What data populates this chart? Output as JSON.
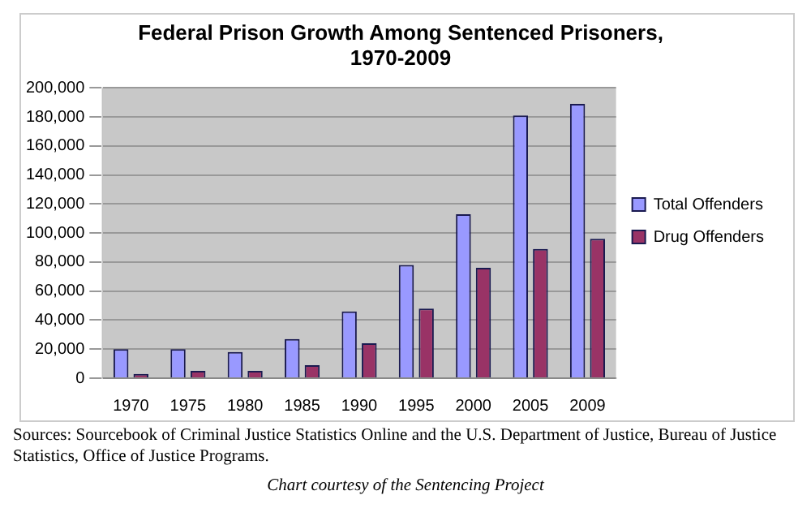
{
  "chart_data": {
    "type": "bar",
    "title": "Federal Prison Growth Among Sentenced Prisoners,\n1970-2009",
    "categories": [
      "1970",
      "1975",
      "1980",
      "1985",
      "1990",
      "1995",
      "2000",
      "2005",
      "2009"
    ],
    "series": [
      {
        "name": "Total Offenders",
        "color": "#9999ff",
        "values": [
          20000,
          20000,
          18000,
          27000,
          46000,
          78000,
          113000,
          181000,
          189000
        ]
      },
      {
        "name": "Drug Offenders",
        "color": "#993366",
        "values": [
          3000,
          5000,
          5000,
          9000,
          24000,
          48000,
          76000,
          89000,
          96000
        ]
      }
    ],
    "ylim": [
      0,
      200000
    ],
    "yticks": [
      0,
      {
        "value": 20000,
        "label": "20,000"
      },
      {
        "value": 40000,
        "label": "40,000"
      },
      {
        "value": 60000,
        "label": "60,000"
      },
      {
        "value": 80000,
        "label": "80,000"
      },
      {
        "value": 100000,
        "label": "100,000"
      },
      {
        "value": 120000,
        "label": "120,000"
      },
      {
        "value": 140000,
        "label": "140,000"
      },
      {
        "value": 160000,
        "label": "160,000"
      },
      {
        "value": 180000,
        "label": "180,000"
      },
      {
        "value": 200000,
        "label": "200,000"
      }
    ],
    "grid": "y",
    "legend": "right",
    "annotations": [
      "Sources: Sourcebook of Criminal Justice Statistics Online and the U.S. Department of Justice, Bureau of Justice Statistics, Office of Justice Programs.",
      "Chart courtesy of the Sentencing Project"
    ]
  }
}
